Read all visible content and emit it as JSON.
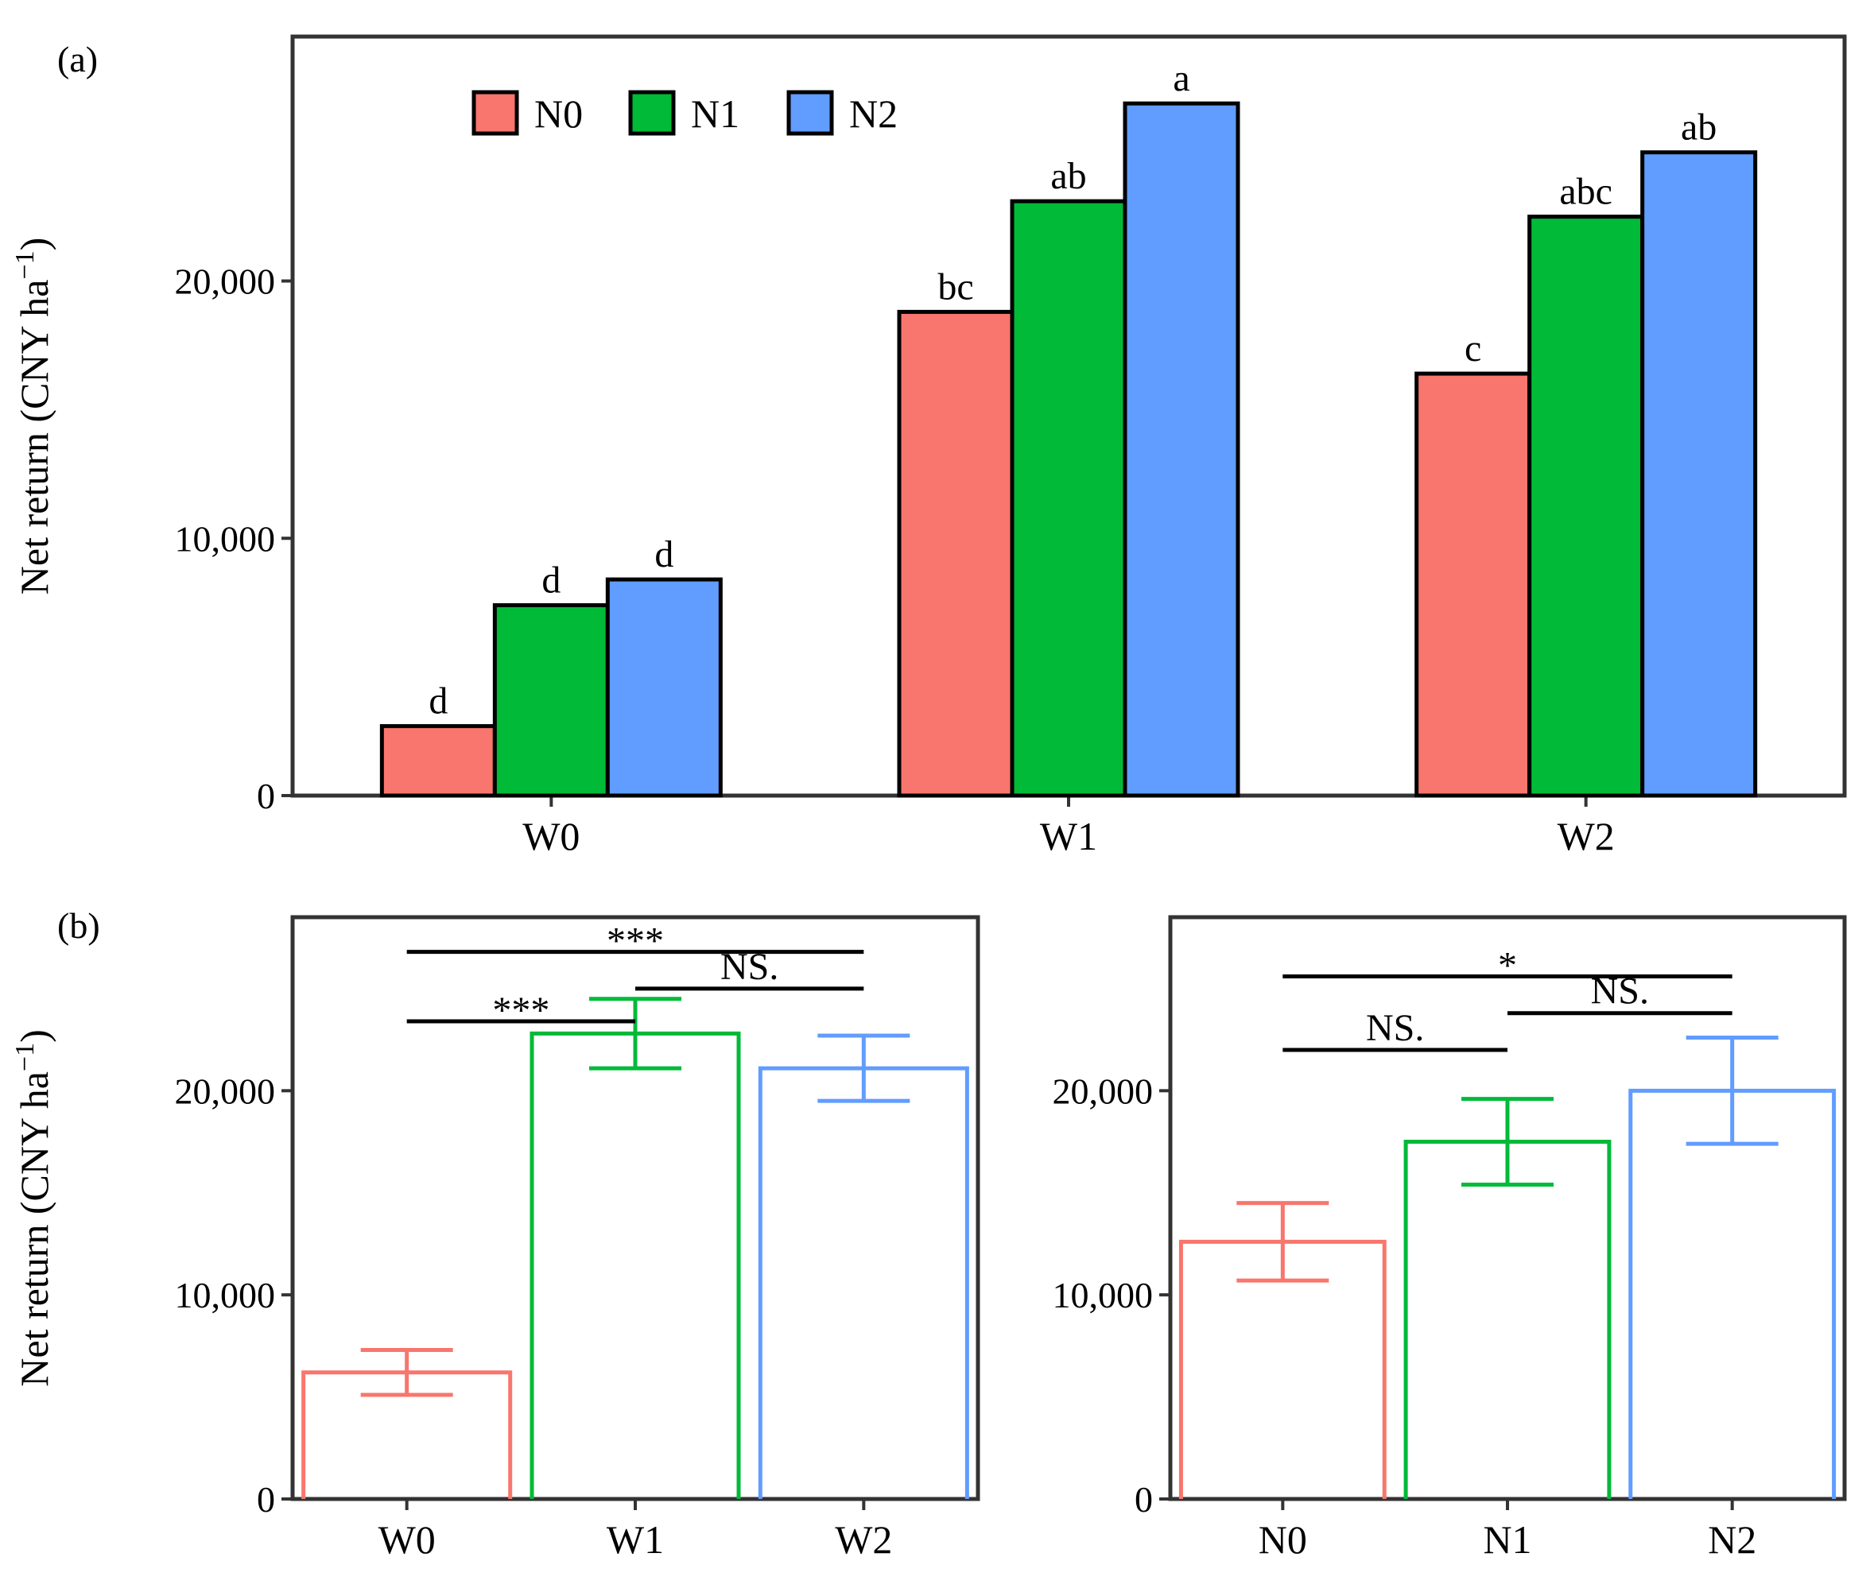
{
  "chart_data": [
    {
      "panel": "(a)",
      "type": "bar",
      "categories": [
        "W0",
        "W1",
        "W2"
      ],
      "series": [
        {
          "name": "N0",
          "color": "#F8766D",
          "values": [
            2700,
            18800,
            16400
          ],
          "letters": [
            "d",
            "bc",
            "c"
          ]
        },
        {
          "name": "N1",
          "color": "#00BA38",
          "values": [
            7400,
            23100,
            22500
          ],
          "letters": [
            "d",
            "ab",
            "abc"
          ]
        },
        {
          "name": "N2",
          "color": "#619CFF",
          "values": [
            8400,
            26900,
            25000
          ],
          "letters": [
            "d",
            "a",
            "ab"
          ]
        }
      ],
      "ylabel": "Net return (CNY  ha",
      "ylabel_sup": "−1",
      "ylabel_close": ")",
      "ylim": [
        0,
        29500
      ],
      "yticks": [
        0,
        10000,
        20000
      ],
      "ytick_labels": [
        "0",
        "10,000",
        "20,000"
      ],
      "legend_position": "top-left"
    },
    {
      "panel": "(b)",
      "type": "bar",
      "style": "outline",
      "categories": [
        "W0",
        "W1",
        "W2"
      ],
      "colors": [
        "#F8766D",
        "#00BA38",
        "#619CFF"
      ],
      "values": [
        6200,
        22800,
        21100
      ],
      "errors": [
        1100,
        1700,
        1600
      ],
      "ylabel": "Net return (CNY  ha",
      "ylabel_sup": "−1",
      "ylabel_close": ")",
      "ylim": [
        0,
        28500
      ],
      "yticks": [
        0,
        10000,
        20000
      ],
      "ytick_labels": [
        "0",
        "10,000",
        "20,000"
      ],
      "comparisons": [
        {
          "from": "W0",
          "to": "W2",
          "y": 26800,
          "label": "***"
        },
        {
          "from": "W1",
          "to": "W2",
          "y": 25000,
          "label": "NS."
        },
        {
          "from": "W0",
          "to": "W1",
          "y": 23400,
          "label": "***"
        }
      ]
    },
    {
      "type": "bar",
      "style": "outline",
      "categories": [
        "N0",
        "N1",
        "N2"
      ],
      "colors": [
        "#F8766D",
        "#00BA38",
        "#619CFF"
      ],
      "values": [
        12600,
        17500,
        20000
      ],
      "errors": [
        1900,
        2100,
        2600
      ],
      "ylim": [
        0,
        28500
      ],
      "yticks": [
        0,
        10000,
        20000
      ],
      "ytick_labels": [
        "0",
        "10,000",
        "20,000"
      ],
      "comparisons": [
        {
          "from": "N0",
          "to": "N2",
          "y": 25600,
          "label": "*"
        },
        {
          "from": "N1",
          "to": "N2",
          "y": 23800,
          "label": "NS."
        },
        {
          "from": "N0",
          "to": "N1",
          "y": 22000,
          "label": "NS."
        }
      ]
    }
  ]
}
